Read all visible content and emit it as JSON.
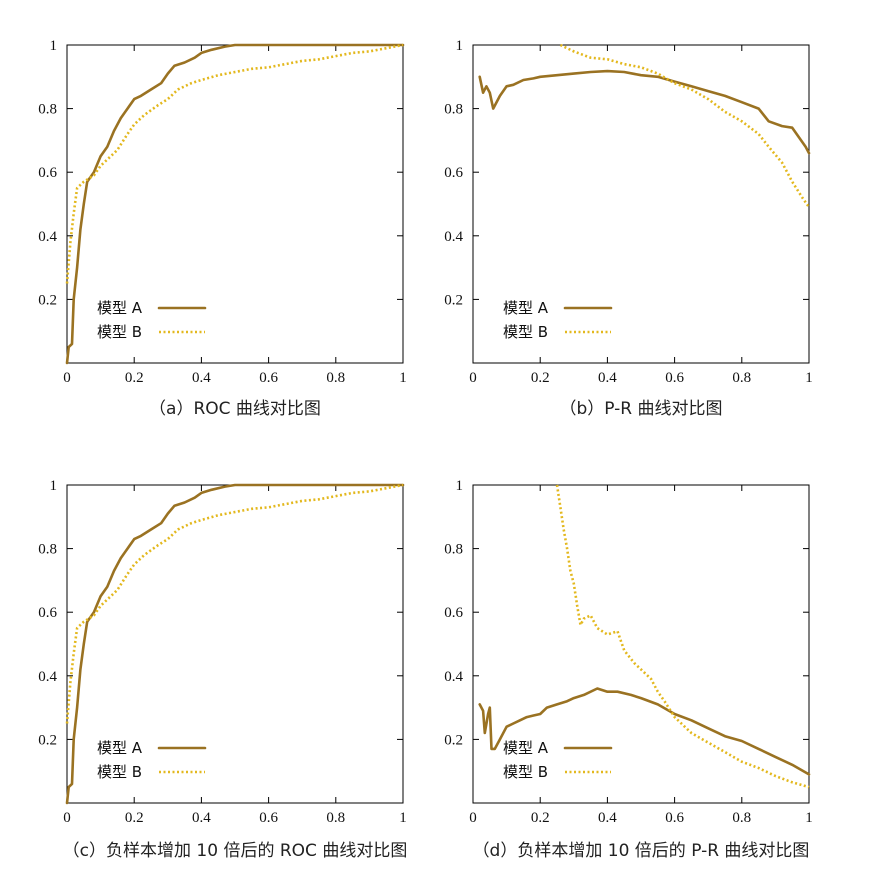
{
  "chart_data": [
    {
      "type": "line",
      "caption": "（a）ROC 曲线对比图",
      "xlim": [
        0,
        1
      ],
      "ylim": [
        0,
        1
      ],
      "xticks": [
        "0",
        "0.2",
        "0.4",
        "0.6",
        "0.8",
        "1"
      ],
      "yticks": [
        "0.2",
        "0.4",
        "0.6",
        "0.8",
        "1"
      ],
      "legend_position": "bottom-left",
      "series": [
        {
          "name": "模型 A",
          "color": "#9a7222",
          "style": "solid",
          "points": [
            [
              0,
              0
            ],
            [
              0.005,
              0.05
            ],
            [
              0.015,
              0.06
            ],
            [
              0.02,
              0.2
            ],
            [
              0.03,
              0.3
            ],
            [
              0.04,
              0.42
            ],
            [
              0.05,
              0.5
            ],
            [
              0.06,
              0.57
            ],
            [
              0.08,
              0.6
            ],
            [
              0.1,
              0.65
            ],
            [
              0.12,
              0.68
            ],
            [
              0.14,
              0.73
            ],
            [
              0.16,
              0.77
            ],
            [
              0.18,
              0.8
            ],
            [
              0.2,
              0.83
            ],
            [
              0.22,
              0.84
            ],
            [
              0.25,
              0.86
            ],
            [
              0.28,
              0.88
            ],
            [
              0.3,
              0.91
            ],
            [
              0.32,
              0.935
            ],
            [
              0.35,
              0.945
            ],
            [
              0.38,
              0.96
            ],
            [
              0.4,
              0.975
            ],
            [
              0.43,
              0.985
            ],
            [
              0.47,
              0.995
            ],
            [
              0.5,
              1
            ],
            [
              0.6,
              1
            ],
            [
              0.8,
              1
            ],
            [
              1,
              1
            ]
          ]
        },
        {
          "name": "模型 B",
          "color": "#e3b81e",
          "style": "dotted",
          "points": [
            [
              0,
              0.25
            ],
            [
              0.01,
              0.38
            ],
            [
              0.02,
              0.47
            ],
            [
              0.03,
              0.55
            ],
            [
              0.05,
              0.57
            ],
            [
              0.08,
              0.59
            ],
            [
              0.1,
              0.62
            ],
            [
              0.13,
              0.65
            ],
            [
              0.15,
              0.67
            ],
            [
              0.18,
              0.72
            ],
            [
              0.2,
              0.75
            ],
            [
              0.23,
              0.78
            ],
            [
              0.27,
              0.81
            ],
            [
              0.3,
              0.83
            ],
            [
              0.33,
              0.86
            ],
            [
              0.37,
              0.88
            ],
            [
              0.4,
              0.89
            ],
            [
              0.45,
              0.905
            ],
            [
              0.5,
              0.915
            ],
            [
              0.55,
              0.925
            ],
            [
              0.6,
              0.93
            ],
            [
              0.65,
              0.94
            ],
            [
              0.7,
              0.95
            ],
            [
              0.75,
              0.955
            ],
            [
              0.8,
              0.965
            ],
            [
              0.85,
              0.975
            ],
            [
              0.9,
              0.98
            ],
            [
              0.95,
              0.99
            ],
            [
              1,
              1
            ]
          ]
        }
      ]
    },
    {
      "type": "line",
      "caption": "（b）P-R 曲线对比图",
      "xlim": [
        0,
        1
      ],
      "ylim": [
        0,
        1
      ],
      "xticks": [
        "0",
        "0.2",
        "0.4",
        "0.6",
        "0.8",
        "1"
      ],
      "yticks": [
        "0.2",
        "0.4",
        "0.6",
        "0.8",
        "1"
      ],
      "legend_position": "bottom-left",
      "series": [
        {
          "name": "模型 A",
          "color": "#9a7222",
          "style": "solid",
          "points": [
            [
              0.02,
              0.9
            ],
            [
              0.03,
              0.85
            ],
            [
              0.04,
              0.87
            ],
            [
              0.05,
              0.85
            ],
            [
              0.06,
              0.8
            ],
            [
              0.08,
              0.84
            ],
            [
              0.1,
              0.87
            ],
            [
              0.12,
              0.875
            ],
            [
              0.15,
              0.89
            ],
            [
              0.18,
              0.895
            ],
            [
              0.2,
              0.9
            ],
            [
              0.25,
              0.905
            ],
            [
              0.3,
              0.91
            ],
            [
              0.35,
              0.915
            ],
            [
              0.4,
              0.918
            ],
            [
              0.45,
              0.915
            ],
            [
              0.5,
              0.905
            ],
            [
              0.55,
              0.9
            ],
            [
              0.6,
              0.885
            ],
            [
              0.65,
              0.87
            ],
            [
              0.7,
              0.855
            ],
            [
              0.75,
              0.84
            ],
            [
              0.8,
              0.82
            ],
            [
              0.85,
              0.8
            ],
            [
              0.88,
              0.76
            ],
            [
              0.92,
              0.745
            ],
            [
              0.95,
              0.74
            ],
            [
              0.97,
              0.71
            ],
            [
              0.99,
              0.68
            ],
            [
              1,
              0.66
            ]
          ]
        },
        {
          "name": "模型 B",
          "color": "#e3b81e",
          "style": "dotted",
          "points": [
            [
              0.26,
              1
            ],
            [
              0.3,
              0.98
            ],
            [
              0.35,
              0.96
            ],
            [
              0.4,
              0.955
            ],
            [
              0.45,
              0.94
            ],
            [
              0.5,
              0.93
            ],
            [
              0.55,
              0.91
            ],
            [
              0.6,
              0.88
            ],
            [
              0.65,
              0.86
            ],
            [
              0.7,
              0.83
            ],
            [
              0.75,
              0.79
            ],
            [
              0.8,
              0.76
            ],
            [
              0.85,
              0.72
            ],
            [
              0.88,
              0.68
            ],
            [
              0.92,
              0.63
            ],
            [
              0.95,
              0.57
            ],
            [
              0.98,
              0.52
            ],
            [
              1,
              0.49
            ]
          ]
        }
      ]
    },
    {
      "type": "line",
      "caption": "（c）负样本增加 10 倍后的 ROC 曲线对比图",
      "xlim": [
        0,
        1
      ],
      "ylim": [
        0,
        1
      ],
      "xticks": [
        "0",
        "0.2",
        "0.4",
        "0.6",
        "0.8",
        "1"
      ],
      "yticks": [
        "0.2",
        "0.4",
        "0.6",
        "0.8",
        "1"
      ],
      "legend_position": "bottom-left",
      "series": [
        {
          "name": "模型 A",
          "color": "#9a7222",
          "style": "solid",
          "points": [
            [
              0,
              0
            ],
            [
              0.005,
              0.05
            ],
            [
              0.015,
              0.06
            ],
            [
              0.02,
              0.2
            ],
            [
              0.03,
              0.3
            ],
            [
              0.04,
              0.42
            ],
            [
              0.05,
              0.5
            ],
            [
              0.06,
              0.57
            ],
            [
              0.08,
              0.6
            ],
            [
              0.1,
              0.65
            ],
            [
              0.12,
              0.68
            ],
            [
              0.14,
              0.73
            ],
            [
              0.16,
              0.77
            ],
            [
              0.18,
              0.8
            ],
            [
              0.2,
              0.83
            ],
            [
              0.22,
              0.84
            ],
            [
              0.25,
              0.86
            ],
            [
              0.28,
              0.88
            ],
            [
              0.3,
              0.91
            ],
            [
              0.32,
              0.935
            ],
            [
              0.35,
              0.945
            ],
            [
              0.38,
              0.96
            ],
            [
              0.4,
              0.975
            ],
            [
              0.43,
              0.985
            ],
            [
              0.47,
              0.995
            ],
            [
              0.5,
              1
            ],
            [
              0.6,
              1
            ],
            [
              0.8,
              1
            ],
            [
              1,
              1
            ]
          ]
        },
        {
          "name": "模型 B",
          "color": "#e3b81e",
          "style": "dotted",
          "points": [
            [
              0,
              0.25
            ],
            [
              0.01,
              0.38
            ],
            [
              0.02,
              0.47
            ],
            [
              0.03,
              0.55
            ],
            [
              0.05,
              0.57
            ],
            [
              0.08,
              0.59
            ],
            [
              0.1,
              0.62
            ],
            [
              0.13,
              0.65
            ],
            [
              0.15,
              0.67
            ],
            [
              0.18,
              0.72
            ],
            [
              0.2,
              0.75
            ],
            [
              0.23,
              0.78
            ],
            [
              0.27,
              0.81
            ],
            [
              0.3,
              0.83
            ],
            [
              0.33,
              0.86
            ],
            [
              0.37,
              0.88
            ],
            [
              0.4,
              0.89
            ],
            [
              0.45,
              0.905
            ],
            [
              0.5,
              0.915
            ],
            [
              0.55,
              0.925
            ],
            [
              0.6,
              0.93
            ],
            [
              0.65,
              0.94
            ],
            [
              0.7,
              0.95
            ],
            [
              0.75,
              0.955
            ],
            [
              0.8,
              0.965
            ],
            [
              0.85,
              0.975
            ],
            [
              0.9,
              0.98
            ],
            [
              0.95,
              0.99
            ],
            [
              1,
              1
            ]
          ]
        }
      ]
    },
    {
      "type": "line",
      "caption": "（d）负样本增加 10 倍后的 P-R 曲线对比图",
      "xlim": [
        0,
        1
      ],
      "ylim": [
        0,
        1
      ],
      "xticks": [
        "0",
        "0.2",
        "0.4",
        "0.6",
        "0.8",
        "1"
      ],
      "yticks": [
        "0.2",
        "0.4",
        "0.6",
        "0.8",
        "1"
      ],
      "legend_position": "bottom-left",
      "series": [
        {
          "name": "模型 A",
          "color": "#9a7222",
          "style": "solid",
          "points": [
            [
              0.02,
              0.31
            ],
            [
              0.03,
              0.29
            ],
            [
              0.035,
              0.22
            ],
            [
              0.045,
              0.28
            ],
            [
              0.05,
              0.3
            ],
            [
              0.055,
              0.17
            ],
            [
              0.065,
              0.17
            ],
            [
              0.08,
              0.2
            ],
            [
              0.1,
              0.24
            ],
            [
              0.12,
              0.25
            ],
            [
              0.14,
              0.26
            ],
            [
              0.16,
              0.27
            ],
            [
              0.18,
              0.275
            ],
            [
              0.2,
              0.28
            ],
            [
              0.22,
              0.3
            ],
            [
              0.25,
              0.31
            ],
            [
              0.28,
              0.32
            ],
            [
              0.3,
              0.33
            ],
            [
              0.33,
              0.34
            ],
            [
              0.37,
              0.36
            ],
            [
              0.4,
              0.35
            ],
            [
              0.43,
              0.35
            ],
            [
              0.47,
              0.34
            ],
            [
              0.5,
              0.33
            ],
            [
              0.55,
              0.31
            ],
            [
              0.6,
              0.28
            ],
            [
              0.65,
              0.26
            ],
            [
              0.7,
              0.235
            ],
            [
              0.75,
              0.21
            ],
            [
              0.8,
              0.195
            ],
            [
              0.85,
              0.17
            ],
            [
              0.9,
              0.145
            ],
            [
              0.95,
              0.12
            ],
            [
              1,
              0.09
            ]
          ]
        },
        {
          "name": "模型 B",
          "color": "#e3b81e",
          "style": "dotted",
          "points": [
            [
              0.25,
              1
            ],
            [
              0.26,
              0.93
            ],
            [
              0.27,
              0.86
            ],
            [
              0.28,
              0.8
            ],
            [
              0.29,
              0.73
            ],
            [
              0.3,
              0.69
            ],
            [
              0.31,
              0.62
            ],
            [
              0.32,
              0.56
            ],
            [
              0.33,
              0.58
            ],
            [
              0.35,
              0.59
            ],
            [
              0.37,
              0.55
            ],
            [
              0.4,
              0.53
            ],
            [
              0.43,
              0.54
            ],
            [
              0.45,
              0.48
            ],
            [
              0.48,
              0.44
            ],
            [
              0.5,
              0.42
            ],
            [
              0.53,
              0.39
            ],
            [
              0.55,
              0.35
            ],
            [
              0.57,
              0.32
            ],
            [
              0.6,
              0.27
            ],
            [
              0.65,
              0.22
            ],
            [
              0.7,
              0.19
            ],
            [
              0.75,
              0.16
            ],
            [
              0.8,
              0.13
            ],
            [
              0.85,
              0.11
            ],
            [
              0.9,
              0.085
            ],
            [
              0.95,
              0.065
            ],
            [
              1,
              0.05
            ]
          ]
        }
      ]
    }
  ]
}
